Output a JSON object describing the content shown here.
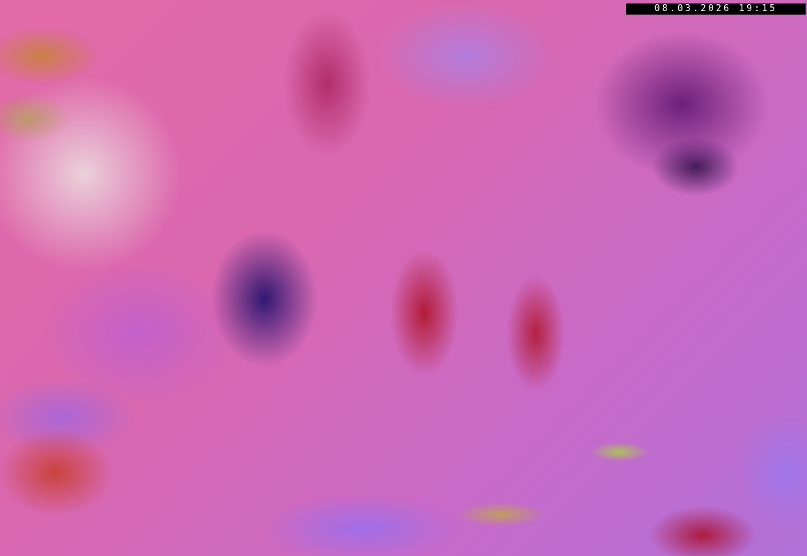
{
  "image": {
    "description_type": "satellite-airmass-rgb",
    "timestamp": "08.03.2026 19:15"
  }
}
